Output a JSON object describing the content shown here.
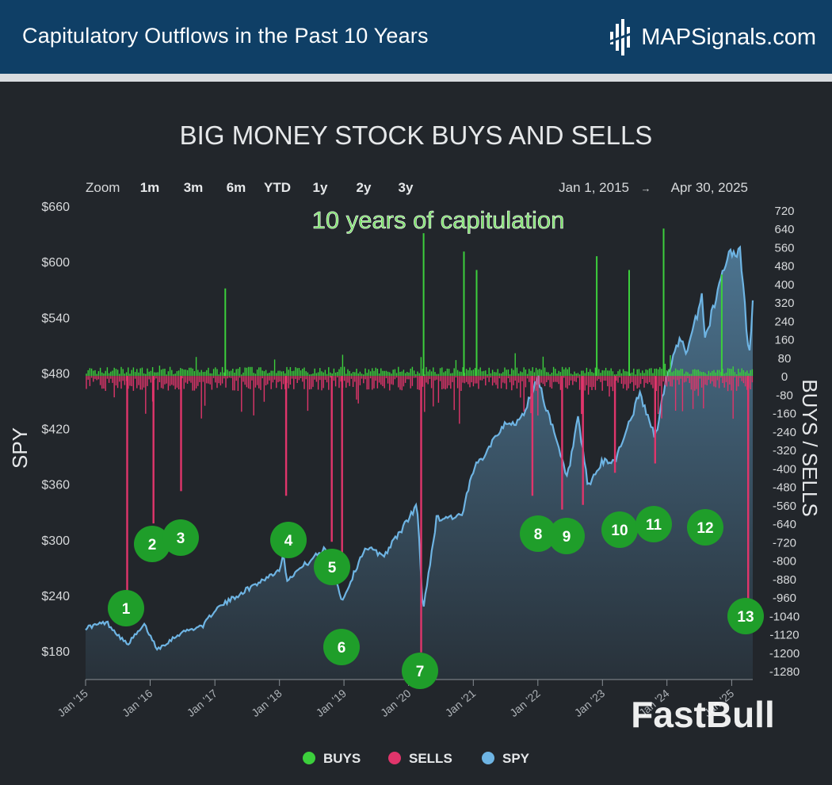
{
  "header": {
    "title": "Capitulatory Outflows in the Past 10 Years",
    "brand": "MAPSignals.com"
  },
  "watermark": "FastBull",
  "colors": {
    "header_bg": "#0f3f66",
    "panel_bg": "#22262b",
    "buys": "#3ccf3c",
    "sells": "#e0356b",
    "spy": "#6eb4e3",
    "marker": "#1f9e2a",
    "annotation": "#7be06a"
  },
  "chart_data": {
    "type": "bar+area",
    "title": "BIG MONEY STOCK BUYS AND SELLS",
    "annotation": "10 years of capitulation",
    "zoom": {
      "label": "Zoom",
      "options": [
        "1m",
        "3m",
        "6m",
        "YTD",
        "1y",
        "2y",
        "3y"
      ]
    },
    "date_range": {
      "from": "Jan 1, 2015",
      "arrow": "→",
      "to": "Apr 30, 2025"
    },
    "left_axis": {
      "label": "SPY",
      "ticks": [
        "$660",
        "$600",
        "$540",
        "$480",
        "$420",
        "$360",
        "$300",
        "$240",
        "$180"
      ],
      "range": [
        160,
        660
      ]
    },
    "right_axis": {
      "label": "BUYS / SELLS",
      "ticks": [
        "720",
        "640",
        "560",
        "480",
        "400",
        "320",
        "240",
        "160",
        "80",
        "0",
        "-80",
        "-160",
        "-240",
        "-320",
        "-400",
        "-480",
        "-560",
        "-640",
        "-720",
        "-800",
        "-880",
        "-960",
        "-1040",
        "-1120",
        "-1200",
        "-1280"
      ],
      "range": [
        -1280,
        720
      ]
    },
    "x_axis": {
      "ticks": [
        "Jan '15",
        "Jan '16",
        "Jan '17",
        "Jan '18",
        "Jan '19",
        "Jan '20",
        "Jan '21",
        "Jan '22",
        "Jan '23",
        "Jan '24",
        "Jan '25"
      ],
      "range": [
        "2015-01-01",
        "2025-04-30"
      ]
    },
    "legend": [
      {
        "name": "BUYS",
        "color": "#3ccf3c"
      },
      {
        "name": "SELLS",
        "color": "#e0356b"
      },
      {
        "name": "SPY",
        "color": "#6eb4e3"
      }
    ],
    "spy_series": {
      "name": "SPY",
      "points": [
        [
          "2015-01-01",
          205
        ],
        [
          "2015-05-01",
          211
        ],
        [
          "2015-08-24",
          187
        ],
        [
          "2015-12-01",
          208
        ],
        [
          "2016-02-11",
          182
        ],
        [
          "2016-06-27",
          200
        ],
        [
          "2016-11-01",
          208
        ],
        [
          "2016-12-30",
          224
        ],
        [
          "2017-06-01",
          243
        ],
        [
          "2017-12-29",
          267
        ],
        [
          "2018-01-26",
          286
        ],
        [
          "2018-02-08",
          257
        ],
        [
          "2018-06-01",
          274
        ],
        [
          "2018-09-20",
          291
        ],
        [
          "2018-12-24",
          234
        ],
        [
          "2019-05-01",
          292
        ],
        [
          "2019-08-15",
          283
        ],
        [
          "2019-12-31",
          322
        ],
        [
          "2020-02-19",
          338
        ],
        [
          "2020-03-23",
          222
        ],
        [
          "2020-06-08",
          323
        ],
        [
          "2020-10-30",
          326
        ],
        [
          "2020-12-31",
          374
        ],
        [
          "2021-06-01",
          420
        ],
        [
          "2021-09-30",
          430
        ],
        [
          "2021-12-31",
          475
        ],
        [
          "2022-06-16",
          366
        ],
        [
          "2022-08-16",
          429
        ],
        [
          "2022-10-12",
          357
        ],
        [
          "2022-12-30",
          383
        ],
        [
          "2023-03-13",
          385
        ],
        [
          "2023-07-31",
          457
        ],
        [
          "2023-10-27",
          410
        ],
        [
          "2023-12-29",
          475
        ],
        [
          "2024-03-28",
          523
        ],
        [
          "2024-04-19",
          495
        ],
        [
          "2024-07-16",
          564
        ],
        [
          "2024-08-05",
          517
        ],
        [
          "2024-12-06",
          607
        ],
        [
          "2025-02-19",
          611
        ],
        [
          "2025-04-08",
          496
        ],
        [
          "2025-04-30",
          554
        ]
      ]
    },
    "sell_spikes": [
      {
        "date": "2015-08-24",
        "value": -1060
      },
      {
        "date": "2016-01-20",
        "value": -640
      },
      {
        "date": "2016-06-24",
        "value": -500
      },
      {
        "date": "2018-02-08",
        "value": -520
      },
      {
        "date": "2018-10-24",
        "value": -720
      },
      {
        "date": "2018-12-21",
        "value": -860
      },
      {
        "date": "2020-03-12",
        "value": -1200
      },
      {
        "date": "2021-12-01",
        "value": -520
      },
      {
        "date": "2022-05-18",
        "value": -580
      },
      {
        "date": "2022-09-13",
        "value": -560
      },
      {
        "date": "2023-03-13",
        "value": -420
      },
      {
        "date": "2023-10-26",
        "value": -380
      },
      {
        "date": "2025-04-04",
        "value": -1040
      }
    ],
    "buy_spikes": [
      {
        "date": "2017-03-01",
        "value": 380
      },
      {
        "date": "2020-03-26",
        "value": 620
      },
      {
        "date": "2020-11-09",
        "value": 540
      },
      {
        "date": "2021-01-20",
        "value": 460
      },
      {
        "date": "2022-11-30",
        "value": 520
      },
      {
        "date": "2023-06-01",
        "value": 460
      },
      {
        "date": "2023-12-13",
        "value": 640
      },
      {
        "date": "2024-11-06",
        "value": 440
      }
    ],
    "markers": [
      {
        "label": "1",
        "date": "2015-08-24"
      },
      {
        "label": "2",
        "date": "2016-01-20"
      },
      {
        "label": "3",
        "date": "2016-06-24"
      },
      {
        "label": "4",
        "date": "2018-02-08"
      },
      {
        "label": "5",
        "date": "2018-10-24"
      },
      {
        "label": "6",
        "date": "2018-12-21"
      },
      {
        "label": "7",
        "date": "2020-03-12"
      },
      {
        "label": "8",
        "date": "2021-12-01"
      },
      {
        "label": "9",
        "date": "2022-05-18"
      },
      {
        "label": "10",
        "date": "2023-03-13"
      },
      {
        "label": "11",
        "date": "2023-10-26"
      },
      {
        "label": "12",
        "date": "2024-08-05"
      },
      {
        "label": "13",
        "date": "2025-04-04"
      }
    ]
  }
}
